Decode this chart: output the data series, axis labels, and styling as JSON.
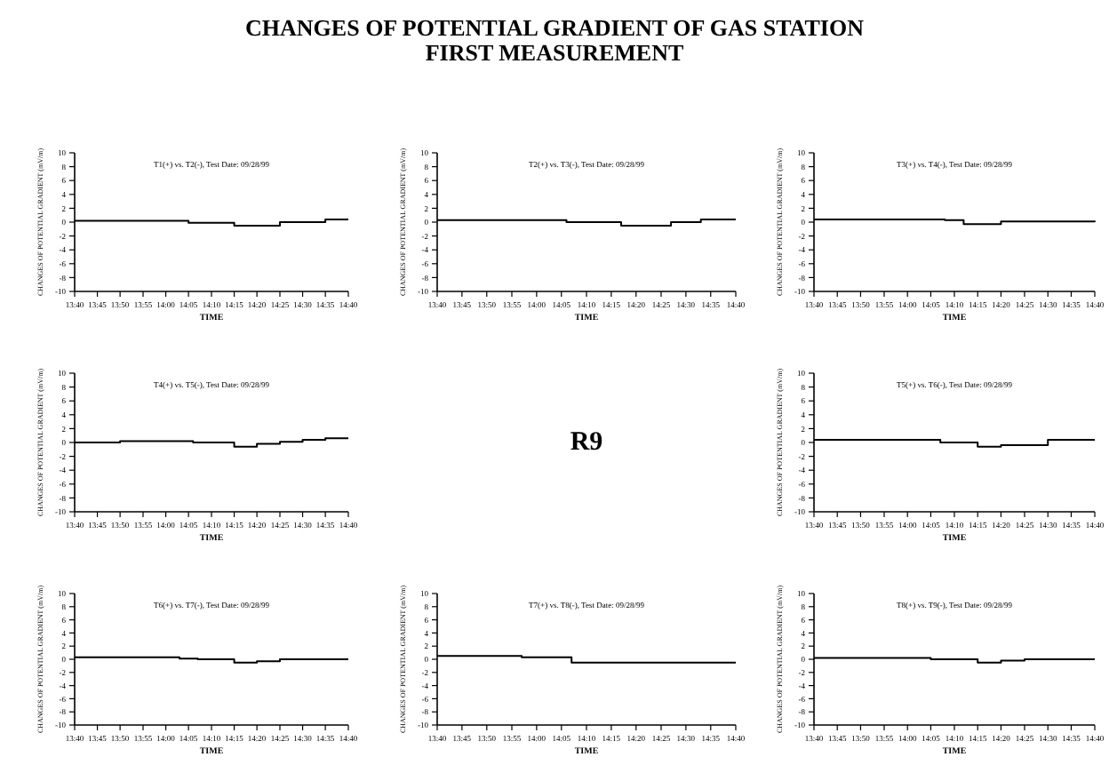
{
  "chart_data": [
    {
      "type": "other",
      "title": "CHANGES OF POTENTIAL GRADIENT OF GAS STATION",
      "subtitle": "FIRST MEASUREMENT"
    },
    {
      "type": "step",
      "xlabel": "TIME",
      "ylabel": "CHANGES OF POTENTIAL GRADIENT (mV/m)",
      "annotations": [
        "T1(+) vs. T2(-), Test Date: 09/28/99"
      ],
      "color": "#000000",
      "x": [
        13.667,
        14.0,
        14.083,
        14.25,
        14.417,
        14.583,
        14.667
      ],
      "values": [
        0.2,
        0.2,
        -0.1,
        -0.5,
        0,
        0.4,
        0.4
      ],
      "xlim": [
        13.667,
        14.667
      ],
      "ylim": [
        -10,
        10
      ],
      "yticks": [
        -10,
        -8,
        -6,
        -4,
        -2,
        0,
        2,
        4,
        6,
        8,
        10
      ],
      "xticks": [
        {
          "value": 13.667,
          "label": "13:40"
        },
        {
          "value": 13.75,
          "label": "13:45"
        },
        {
          "value": 13.833,
          "label": "13:50"
        },
        {
          "value": 13.917,
          "label": "13:55"
        },
        {
          "value": 14.0,
          "label": "14:00"
        },
        {
          "value": 14.083,
          "label": "14:05"
        },
        {
          "value": 14.167,
          "label": "14:10"
        },
        {
          "value": 14.25,
          "label": "14:15"
        },
        {
          "value": 14.333,
          "label": "14:20"
        },
        {
          "value": 14.417,
          "label": "14:25"
        },
        {
          "value": 14.5,
          "label": "14:30"
        },
        {
          "value": 14.583,
          "label": "14:35"
        },
        {
          "value": 14.667,
          "label": "14:40"
        }
      ]
    },
    {
      "type": "step",
      "xlabel": "TIME",
      "ylabel": "CHANGES OF POTENTIAL GRADIENT (mV/m)",
      "annotations": [
        "T2(+) vs. T3(-), Test Date: 09/28/99"
      ],
      "color": "#000000",
      "x": [
        13.667,
        14.1,
        14.283,
        14.45,
        14.55,
        14.667
      ],
      "values": [
        0.3,
        0,
        -0.5,
        0,
        0.4,
        0.4
      ],
      "xlim": [
        13.667,
        14.667
      ],
      "ylim": [
        -10,
        10
      ],
      "yticks": [
        -10,
        -8,
        -6,
        -4,
        -2,
        0,
        2,
        4,
        6,
        8,
        10
      ],
      "xticks": [
        {
          "value": 13.667,
          "label": "13:40"
        },
        {
          "value": 13.75,
          "label": "13:45"
        },
        {
          "value": 13.833,
          "label": "13:50"
        },
        {
          "value": 13.917,
          "label": "13:55"
        },
        {
          "value": 14.0,
          "label": "14:00"
        },
        {
          "value": 14.083,
          "label": "14:05"
        },
        {
          "value": 14.167,
          "label": "14:10"
        },
        {
          "value": 14.25,
          "label": "14:15"
        },
        {
          "value": 14.333,
          "label": "14:20"
        },
        {
          "value": 14.417,
          "label": "14:25"
        },
        {
          "value": 14.5,
          "label": "14:30"
        },
        {
          "value": 14.583,
          "label": "14:35"
        },
        {
          "value": 14.667,
          "label": "14:40"
        }
      ]
    },
    {
      "type": "step",
      "xlabel": "TIME",
      "ylabel": "CHANGES OF POTENTIAL GRADIENT (mV/m)",
      "annotations": [
        "T3(+) vs. T4(-), Test Date: 09/28/99"
      ],
      "color": "#000000",
      "x": [
        13.667,
        14.133,
        14.2,
        14.333,
        14.667
      ],
      "values": [
        0.4,
        0.3,
        -0.3,
        0.1,
        0.2
      ],
      "xlim": [
        13.667,
        14.667
      ],
      "ylim": [
        -10,
        10
      ],
      "yticks": [
        -10,
        -8,
        -6,
        -4,
        -2,
        0,
        2,
        4,
        6,
        8,
        10
      ],
      "xticks": [
        {
          "value": 13.667,
          "label": "13:40"
        },
        {
          "value": 13.75,
          "label": "13:45"
        },
        {
          "value": 13.833,
          "label": "13:50"
        },
        {
          "value": 13.917,
          "label": "13:55"
        },
        {
          "value": 14.0,
          "label": "14:00"
        },
        {
          "value": 14.083,
          "label": "14:05"
        },
        {
          "value": 14.167,
          "label": "14:10"
        },
        {
          "value": 14.25,
          "label": "14:15"
        },
        {
          "value": 14.333,
          "label": "14:20"
        },
        {
          "value": 14.417,
          "label": "14:25"
        },
        {
          "value": 14.5,
          "label": "14:30"
        },
        {
          "value": 14.583,
          "label": "14:35"
        },
        {
          "value": 14.667,
          "label": "14:40"
        }
      ]
    },
    {
      "type": "step",
      "xlabel": "TIME",
      "ylabel": "CHANGES OF POTENTIAL GRADIENT (mV/m)",
      "annotations": [
        "T4(+) vs. T5(-), Test Date: 09/28/99"
      ],
      "color": "#000000",
      "x": [
        13.667,
        13.833,
        14.1,
        14.25,
        14.333,
        14.417,
        14.5,
        14.583,
        14.667
      ],
      "values": [
        0,
        0.2,
        0,
        -0.6,
        -0.2,
        0.1,
        0.4,
        0.6,
        0.6
      ],
      "xlim": [
        13.667,
        14.667
      ],
      "ylim": [
        -10,
        10
      ],
      "yticks": [
        -10,
        -8,
        -6,
        -4,
        -2,
        0,
        2,
        4,
        6,
        8,
        10
      ],
      "xticks": [
        {
          "value": 13.667,
          "label": "13:40"
        },
        {
          "value": 13.75,
          "label": "13:45"
        },
        {
          "value": 13.833,
          "label": "13:50"
        },
        {
          "value": 13.917,
          "label": "13:55"
        },
        {
          "value": 14.0,
          "label": "14:00"
        },
        {
          "value": 14.083,
          "label": "14:05"
        },
        {
          "value": 14.167,
          "label": "14:10"
        },
        {
          "value": 14.25,
          "label": "14:15"
        },
        {
          "value": 14.333,
          "label": "14:20"
        },
        {
          "value": 14.417,
          "label": "14:25"
        },
        {
          "value": 14.5,
          "label": "14:30"
        },
        {
          "value": 14.583,
          "label": "14:35"
        },
        {
          "value": 14.667,
          "label": "14:40"
        }
      ]
    },
    {
      "type": "other",
      "title": "R9"
    },
    {
      "type": "step",
      "xlabel": "TIME",
      "ylabel": "CHANGES OF POTENTIAL GRADIENT (mV/m)",
      "annotations": [
        "T5(+) vs. T6(-), Test Date: 09/28/99"
      ],
      "color": "#000000",
      "x": [
        13.667,
        14.117,
        14.25,
        14.333,
        14.5,
        14.667
      ],
      "values": [
        0.4,
        0,
        -0.6,
        -0.4,
        0.4,
        0.4
      ],
      "xlim": [
        13.667,
        14.667
      ],
      "ylim": [
        -10,
        10
      ],
      "yticks": [
        -10,
        -8,
        -6,
        -4,
        -2,
        0,
        2,
        4,
        6,
        8,
        10
      ],
      "xticks": [
        {
          "value": 13.667,
          "label": "13:40"
        },
        {
          "value": 13.75,
          "label": "13:45"
        },
        {
          "value": 13.833,
          "label": "13:50"
        },
        {
          "value": 13.917,
          "label": "13:55"
        },
        {
          "value": 14.0,
          "label": "14:00"
        },
        {
          "value": 14.083,
          "label": "14:05"
        },
        {
          "value": 14.167,
          "label": "14:10"
        },
        {
          "value": 14.25,
          "label": "14:15"
        },
        {
          "value": 14.333,
          "label": "14:20"
        },
        {
          "value": 14.417,
          "label": "14:25"
        },
        {
          "value": 14.5,
          "label": "14:30"
        },
        {
          "value": 14.583,
          "label": "14:35"
        },
        {
          "value": 14.667,
          "label": "14:40"
        }
      ]
    },
    {
      "type": "step",
      "xlabel": "TIME",
      "ylabel": "CHANGES OF POTENTIAL GRADIENT (mV/m)",
      "annotations": [
        "T6(+) vs. T7(-), Test Date: 09/28/99"
      ],
      "color": "#000000",
      "x": [
        13.667,
        14.05,
        14.117,
        14.25,
        14.333,
        14.417,
        14.667
      ],
      "values": [
        0.3,
        0.1,
        0,
        -0.5,
        -0.3,
        0,
        0
      ],
      "xlim": [
        13.667,
        14.667
      ],
      "ylim": [
        -10,
        10
      ],
      "yticks": [
        -10,
        -8,
        -6,
        -4,
        -2,
        0,
        2,
        4,
        6,
        8,
        10
      ],
      "xticks": [
        {
          "value": 13.667,
          "label": "13:40"
        },
        {
          "value": 13.75,
          "label": "13:45"
        },
        {
          "value": 13.833,
          "label": "13:50"
        },
        {
          "value": 13.917,
          "label": "13:55"
        },
        {
          "value": 14.0,
          "label": "14:00"
        },
        {
          "value": 14.083,
          "label": "14:05"
        },
        {
          "value": 14.167,
          "label": "14:10"
        },
        {
          "value": 14.25,
          "label": "14:15"
        },
        {
          "value": 14.333,
          "label": "14:20"
        },
        {
          "value": 14.417,
          "label": "14:25"
        },
        {
          "value": 14.5,
          "label": "14:30"
        },
        {
          "value": 14.583,
          "label": "14:35"
        },
        {
          "value": 14.667,
          "label": "14:40"
        }
      ]
    },
    {
      "type": "step",
      "xlabel": "TIME",
      "ylabel": "CHANGES OF POTENTIAL GRADIENT (mV/m)",
      "annotations": [
        "T7(+) vs. T8(-), Test Date: 09/28/99"
      ],
      "color": "#000000",
      "x": [
        13.667,
        13.95,
        14.117,
        14.667
      ],
      "values": [
        0.5,
        0.3,
        -0.5,
        -0.5
      ],
      "xlim": [
        13.667,
        14.667
      ],
      "ylim": [
        -10,
        10
      ],
      "yticks": [
        -10,
        -8,
        -6,
        -4,
        -2,
        0,
        2,
        4,
        6,
        8,
        10
      ],
      "xticks": [
        {
          "value": 13.667,
          "label": "13:40"
        },
        {
          "value": 13.75,
          "label": "13:45"
        },
        {
          "value": 13.833,
          "label": "13:50"
        },
        {
          "value": 13.917,
          "label": "13:55"
        },
        {
          "value": 14.0,
          "label": "14:00"
        },
        {
          "value": 14.083,
          "label": "14:05"
        },
        {
          "value": 14.167,
          "label": "14:10"
        },
        {
          "value": 14.25,
          "label": "14:15"
        },
        {
          "value": 14.333,
          "label": "14:20"
        },
        {
          "value": 14.417,
          "label": "14:25"
        },
        {
          "value": 14.5,
          "label": "14:30"
        },
        {
          "value": 14.583,
          "label": "14:35"
        },
        {
          "value": 14.667,
          "label": "14:40"
        }
      ]
    },
    {
      "type": "step",
      "xlabel": "TIME",
      "ylabel": "CHANGES OF POTENTIAL GRADIENT (mV/m)",
      "annotations": [
        "T8(+) vs. T9(-), Test Date: 09/28/99"
      ],
      "color": "#000000",
      "x": [
        13.667,
        14.083,
        14.25,
        14.333,
        14.417,
        14.667
      ],
      "values": [
        0.2,
        0,
        -0.5,
        -0.2,
        0,
        0
      ],
      "xlim": [
        13.667,
        14.667
      ],
      "ylim": [
        -10,
        10
      ],
      "yticks": [
        -10,
        -8,
        -6,
        -4,
        -2,
        0,
        2,
        4,
        6,
        8,
        10
      ],
      "xticks": [
        {
          "value": 13.667,
          "label": "13:40"
        },
        {
          "value": 13.75,
          "label": "13:45"
        },
        {
          "value": 13.833,
          "label": "13:50"
        },
        {
          "value": 13.917,
          "label": "13:55"
        },
        {
          "value": 14.0,
          "label": "14:00"
        },
        {
          "value": 14.083,
          "label": "14:05"
        },
        {
          "value": 14.167,
          "label": "14:10"
        },
        {
          "value": 14.25,
          "label": "14:15"
        },
        {
          "value": 14.333,
          "label": "14:20"
        },
        {
          "value": 14.417,
          "label": "14:25"
        },
        {
          "value": 14.5,
          "label": "14:30"
        },
        {
          "value": 14.583,
          "label": "14:35"
        },
        {
          "value": 14.667,
          "label": "14:40"
        }
      ]
    }
  ]
}
